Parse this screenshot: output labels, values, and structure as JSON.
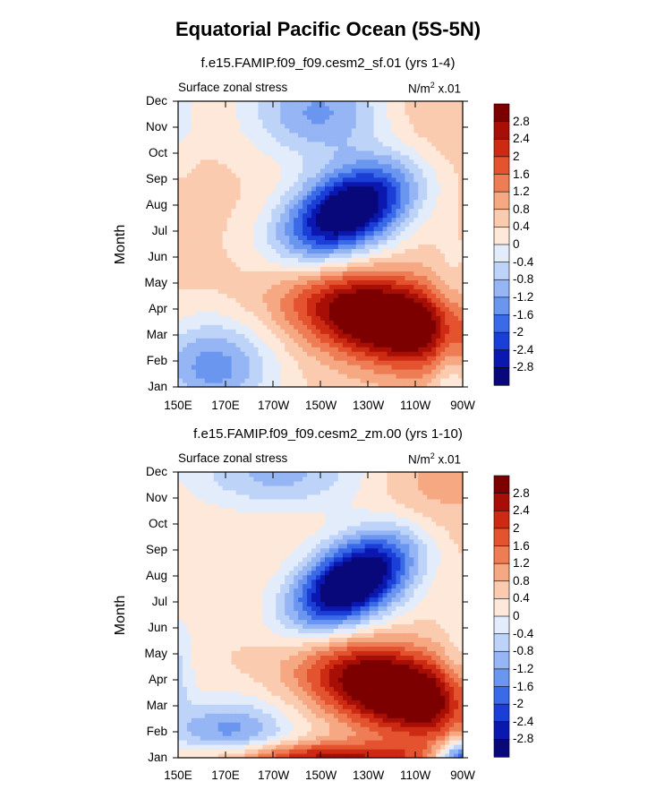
{
  "figure": {
    "title": "Equatorial Pacific Ocean (5S-5N)"
  },
  "chart_data": [
    {
      "type": "heatmap",
      "subtitle": "f.e15.FAMIP.f09_f09.cesm2_sf.01 (yrs 1-4)",
      "left_label": "Surface zonal stress",
      "units_main": "N/m",
      "units_sup": "2",
      "units_scale": "x.01",
      "ylabel": "Month",
      "xlabel": "",
      "x_tick_labels": [
        "150E",
        "170E",
        "170W",
        "150W",
        "130W",
        "110W",
        "90W"
      ],
      "y_tick_labels": [
        "Jan",
        "Feb",
        "Mar",
        "Apr",
        "May",
        "Jun",
        "Jul",
        "Aug",
        "Sep",
        "Oct",
        "Nov",
        "Dec"
      ],
      "colorbar_labels": [
        "2.8",
        "2.4",
        "2",
        "1.6",
        "1.2",
        "0.8",
        "0.4",
        "0",
        "-0.4",
        "-0.8",
        "-1.2",
        "-1.6",
        "-2",
        "-2.4",
        "-2.8"
      ],
      "xlim_lon_east": [
        150,
        270
      ],
      "ylim_month": [
        1,
        12
      ],
      "clim": [
        -3.2,
        3.2
      ],
      "features": [
        {
          "name": "westerly max",
          "lon": 228,
          "month": 3.6,
          "value": 3.2
        },
        {
          "name": "easterly min",
          "lon": 220,
          "month": 7.8,
          "value": -3.2
        },
        {
          "name": "easterly west",
          "lon": 165,
          "month": 1.8,
          "value": -1.6
        },
        {
          "name": "easterly nov",
          "lon": 213,
          "month": 11.3,
          "value": -1.6
        },
        {
          "name": "positive east",
          "lon": 254,
          "month": 11,
          "value": 0.8
        },
        {
          "name": "positive west",
          "lon": 165,
          "month": 8.5,
          "value": 0.6
        },
        {
          "name": "positive west spring",
          "lon": 170,
          "month": 5.5,
          "value": 0.8
        }
      ]
    },
    {
      "type": "heatmap",
      "subtitle": "f.e15.FAMIP.f09_f09.cesm2_zm.00 (yrs 1-10)",
      "left_label": "Surface zonal stress",
      "units_main": "N/m",
      "units_sup": "2",
      "units_scale": "x.01",
      "ylabel": "Month",
      "xlabel": "",
      "x_tick_labels": [
        "150E",
        "170E",
        "170W",
        "150W",
        "130W",
        "110W",
        "90W"
      ],
      "y_tick_labels": [
        "Jan",
        "Feb",
        "Mar",
        "Apr",
        "May",
        "Jun",
        "Jul",
        "Aug",
        "Sep",
        "Oct",
        "Nov",
        "Dec"
      ],
      "colorbar_labels": [
        "2.8",
        "2.4",
        "2",
        "1.6",
        "1.2",
        "0.8",
        "0.4",
        "0",
        "-0.4",
        "-0.8",
        "-1.2",
        "-1.6",
        "-2",
        "-2.4",
        "-2.8"
      ],
      "xlim_lon_east": [
        150,
        270
      ],
      "ylim_month": [
        1,
        12
      ],
      "clim": [
        -3.2,
        3.2
      ],
      "features": [
        {
          "name": "westerly max",
          "lon": 232,
          "month": 3.6,
          "value": 3.2
        },
        {
          "name": "easterly min",
          "lon": 222,
          "month": 7.8,
          "value": -3.2
        },
        {
          "name": "easterly feb",
          "lon": 172,
          "month": 2.0,
          "value": -1.4
        },
        {
          "name": "easterly dec",
          "lon": 190,
          "month": 12,
          "value": -1.0
        },
        {
          "name": "positive east",
          "lon": 256,
          "month": 11.2,
          "value": 1.0
        },
        {
          "name": "positive jan",
          "lon": 200,
          "month": 1.0,
          "value": 1.8
        },
        {
          "name": "negative jan east",
          "lon": 268,
          "month": 1.1,
          "value": -2.4
        }
      ]
    }
  ],
  "colorscale": {
    "colors": [
      "#08087a",
      "#0a18b0",
      "#1b3fd6",
      "#3b6ae8",
      "#6b96f0",
      "#95b5f4",
      "#bed3f8",
      "#e3ecfb",
      "#fde8d9",
      "#fbcbb0",
      "#f5a882",
      "#ee7d55",
      "#e4532f",
      "#cc2a12",
      "#a70f06",
      "#7c0000"
    ]
  }
}
